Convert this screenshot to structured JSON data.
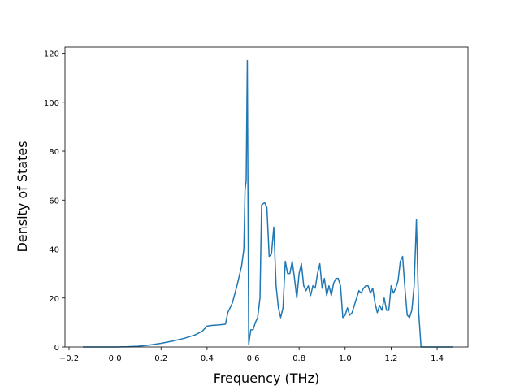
{
  "chart_data": {
    "type": "line",
    "xlabel": "Frequency (THz)",
    "ylabel": "Density of States",
    "x": [
      -0.14,
      0.0,
      0.05,
      0.1,
      0.15,
      0.2,
      0.25,
      0.3,
      0.35,
      0.38,
      0.4,
      0.42,
      0.45,
      0.48,
      0.49,
      0.51,
      0.53,
      0.55,
      0.56,
      0.565,
      0.57,
      0.575,
      0.581,
      0.59,
      0.6,
      0.61,
      0.62,
      0.63,
      0.637,
      0.65,
      0.66,
      0.67,
      0.68,
      0.69,
      0.7,
      0.71,
      0.72,
      0.73,
      0.74,
      0.75,
      0.76,
      0.77,
      0.78,
      0.79,
      0.8,
      0.81,
      0.82,
      0.83,
      0.84,
      0.85,
      0.86,
      0.87,
      0.88,
      0.89,
      0.9,
      0.91,
      0.92,
      0.93,
      0.94,
      0.95,
      0.96,
      0.97,
      0.98,
      0.99,
      1.0,
      1.01,
      1.02,
      1.03,
      1.04,
      1.05,
      1.06,
      1.07,
      1.08,
      1.09,
      1.1,
      1.11,
      1.12,
      1.13,
      1.14,
      1.15,
      1.16,
      1.17,
      1.18,
      1.19,
      1.2,
      1.21,
      1.22,
      1.23,
      1.24,
      1.25,
      1.26,
      1.27,
      1.28,
      1.29,
      1.3,
      1.31,
      1.32,
      1.33,
      1.47
    ],
    "series": [
      {
        "color": "#1f77b4",
        "values": [
          0,
          0,
          0.1,
          0.3,
          0.8,
          1.5,
          2.4,
          3.5,
          5,
          6.5,
          8.5,
          8.8,
          9,
          9.3,
          14,
          18,
          25,
          33,
          40,
          64,
          68,
          117,
          1,
          7,
          7,
          10,
          12,
          20,
          58,
          59,
          57,
          37,
          38,
          49,
          25,
          16,
          12,
          16,
          35,
          30,
          30,
          35,
          28,
          20,
          30,
          34,
          25,
          23,
          25,
          21,
          25,
          24,
          30,
          34,
          24,
          28,
          21,
          25,
          21,
          26,
          28,
          28,
          25,
          12,
          13,
          16,
          13,
          14,
          17,
          20,
          23,
          22,
          24,
          25,
          25,
          22,
          24,
          18,
          14,
          17,
          15,
          20,
          15,
          15,
          25,
          22,
          24,
          27,
          35,
          37,
          24,
          13,
          12,
          15,
          25,
          52,
          14,
          0,
          0
        ]
      }
    ],
    "xlim": [
      -0.2176,
      1.534
    ],
    "ylim": [
      0,
      122.5
    ],
    "xticks": [
      {
        "value": -0.2,
        "label": "−0.2"
      },
      {
        "value": 0,
        "label": "0.0"
      },
      0.2,
      0.4,
      0.6,
      0.8,
      {
        "value": 1,
        "label": "1.0"
      },
      1.2,
      1.4
    ],
    "yticks": [
      0,
      20,
      40,
      60,
      80,
      100,
      120
    ]
  }
}
